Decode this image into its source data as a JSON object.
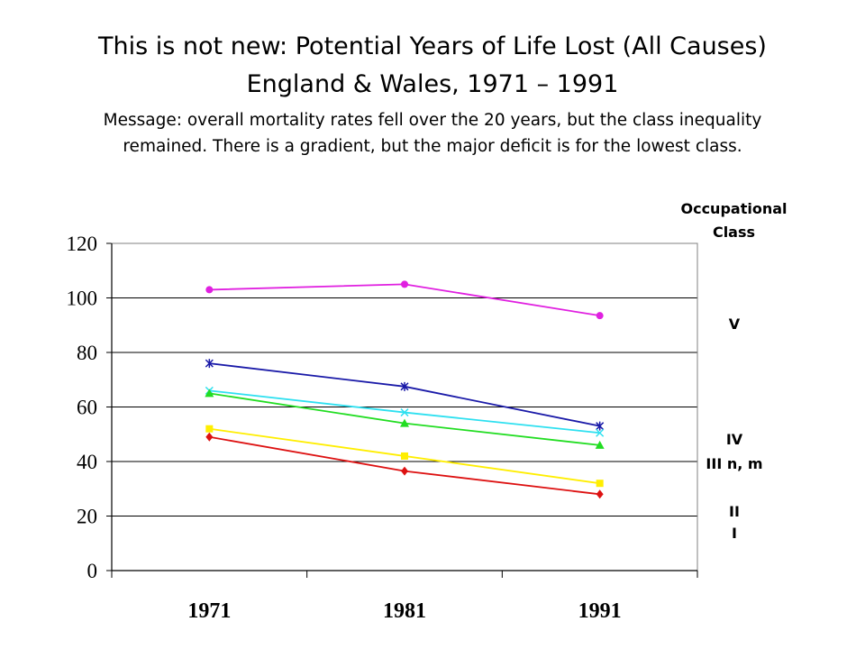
{
  "title_line1": "This is not new: Potential Years of Life Lost (All Causes)",
  "title_line2": "England & Wales, 1971 – 1991",
  "message_line1": "Message: overall mortality rates fell over the 20 years, but the class inequality",
  "message_line2": "remained. There is a gradient, but the major deficit is for the lowest class.",
  "legend_title_line1": "Occupational",
  "legend_title_line2": "Class",
  "class_labels": [
    "V",
    "IV",
    "III n, m",
    "II",
    "I"
  ],
  "chart_data": {
    "type": "line",
    "categories": [
      "1971",
      "1981",
      "1991"
    ],
    "ylim": [
      0,
      120
    ],
    "yticks": [
      "0",
      "20",
      "40",
      "60",
      "80",
      "100",
      "120"
    ],
    "grid": true,
    "series": [
      {
        "name": "V",
        "color": "#e020e0",
        "marker": "circle",
        "values": [
          103,
          105,
          93.5
        ]
      },
      {
        "name": "IV",
        "color": "#1a1aa8",
        "marker": "star",
        "values": [
          76,
          67.5,
          53
        ]
      },
      {
        "name": "III n",
        "color": "#2ee0f0",
        "marker": "x",
        "values": [
          66,
          58,
          50.5
        ]
      },
      {
        "name": "III m",
        "color": "#22dd22",
        "marker": "triangle",
        "values": [
          65,
          54,
          46
        ]
      },
      {
        "name": "II",
        "color": "#ffee00",
        "marker": "square",
        "values": [
          52,
          42,
          32
        ]
      },
      {
        "name": "I",
        "color": "#dd1111",
        "marker": "diamond",
        "values": [
          49,
          36.5,
          28
        ]
      }
    ]
  }
}
